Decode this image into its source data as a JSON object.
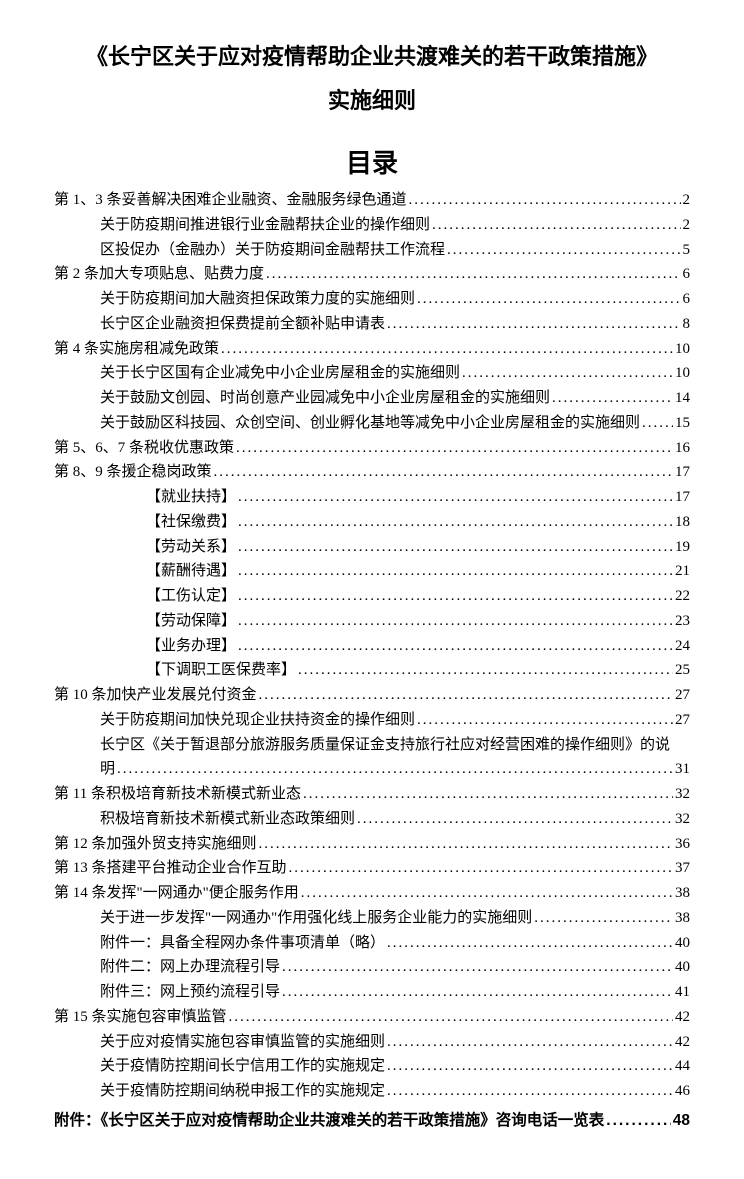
{
  "title_line1": "《长宁区关于应对疫情帮助企业共渡难关的若干政策措施》",
  "title_line2": "实施细则",
  "toc_heading": "目录",
  "entries": [
    {
      "level": 0,
      "label": "第 1、3 条妥善解决困难企业融资、金融服务绿色通道",
      "page": "2"
    },
    {
      "level": 1,
      "label": "关于防疫期间推进银行业金融帮扶企业的操作细则",
      "page": "2"
    },
    {
      "level": 1,
      "label": "区投促办（金融办）关于防疫期间金融帮扶工作流程",
      "page": "5"
    },
    {
      "level": 0,
      "label": "第 2 条加大专项贴息、贴费力度",
      "page": "6"
    },
    {
      "level": 1,
      "label": "关于防疫期间加大融资担保政策力度的实施细则",
      "page": "6"
    },
    {
      "level": 1,
      "label": "长宁区企业融资担保费提前全额补贴申请表",
      "page": "8"
    },
    {
      "level": 0,
      "label": "第 4 条实施房租减免政策",
      "page": "10"
    },
    {
      "level": 1,
      "label": "关于长宁区国有企业减免中小企业房屋租金的实施细则",
      "page": "10"
    },
    {
      "level": 1,
      "label": "关于鼓励文创园、时尚创意产业园减免中小企业房屋租金的实施细则",
      "page": "14"
    },
    {
      "level": 1,
      "label": "关于鼓励区科技园、众创空间、创业孵化基地等减免中小企业房屋租金的实施细则",
      "page": "15"
    },
    {
      "level": 0,
      "label": "第 5、6、7 条税收优惠政策",
      "page": "16"
    },
    {
      "level": 0,
      "label": "第 8、9 条援企稳岗政策",
      "page": "17"
    },
    {
      "level": 2,
      "label": "【就业扶持】",
      "page": "17"
    },
    {
      "level": 2,
      "label": "【社保缴费】",
      "page": "18"
    },
    {
      "level": 2,
      "label": "【劳动关系】",
      "page": "19"
    },
    {
      "level": 2,
      "label": "【薪酬待遇】",
      "page": "21"
    },
    {
      "level": 2,
      "label": "【工伤认定】",
      "page": "22"
    },
    {
      "level": 2,
      "label": "【劳动保障】",
      "page": "23"
    },
    {
      "level": 2,
      "label": "【业务办理】",
      "page": "24"
    },
    {
      "level": 2,
      "label": "【下调职工医保费率】",
      "page": "25"
    },
    {
      "level": 0,
      "label": "第 10 条加快产业发展兑付资金",
      "page": "27"
    },
    {
      "level": 1,
      "label": "关于防疫期间加快兑现企业扶持资金的操作细则",
      "page": "27"
    },
    {
      "level": 1,
      "label": "长宁区《关于暂退部分旅游服务质量保证金支持旅行社应对经营困难的操作细则》的说",
      "page": ""
    },
    {
      "level": 1,
      "label": "明",
      "page": "31"
    },
    {
      "level": 0,
      "label": "第 11 条积极培育新技术新模式新业态",
      "page": "32"
    },
    {
      "level": 1,
      "label": "积极培育新技术新模式新业态政策细则",
      "page": "32"
    },
    {
      "level": 0,
      "label": "第 12 条加强外贸支持实施细则",
      "page": "36"
    },
    {
      "level": 0,
      "label": "第 13 条搭建平台推动企业合作互助",
      "page": "37"
    },
    {
      "level": 0,
      "label": "第 14 条发挥\"一网通办\"便企服务作用",
      "page": "38"
    },
    {
      "level": 1,
      "label": "关于进一步发挥\"一网通办\"作用强化线上服务企业能力的实施细则",
      "page": "38"
    },
    {
      "level": 1,
      "label": "附件一：具备全程网办条件事项清单（略）",
      "page": "40"
    },
    {
      "level": 1,
      "label": "附件二：网上办理流程引导",
      "page": "40"
    },
    {
      "level": 1,
      "label": "附件三：网上预约流程引导",
      "page": "41"
    },
    {
      "level": 0,
      "label": "第 15 条实施包容审慎监管",
      "page": "42"
    },
    {
      "level": 1,
      "label": "关于应对疫情实施包容审慎监管的实施细则",
      "page": "42"
    },
    {
      "level": 1,
      "label": "关于疫情防控期间长宁信用工作的实施规定",
      "page": "44"
    },
    {
      "level": 1,
      "label": "关于疫情防控期间纳税申报工作的实施规定",
      "page": "46"
    }
  ],
  "appendix": {
    "label": "附件：《长宁区关于应对疫情帮助企业共渡难关的若干政策措施》咨询电话一览表",
    "page": "48"
  }
}
